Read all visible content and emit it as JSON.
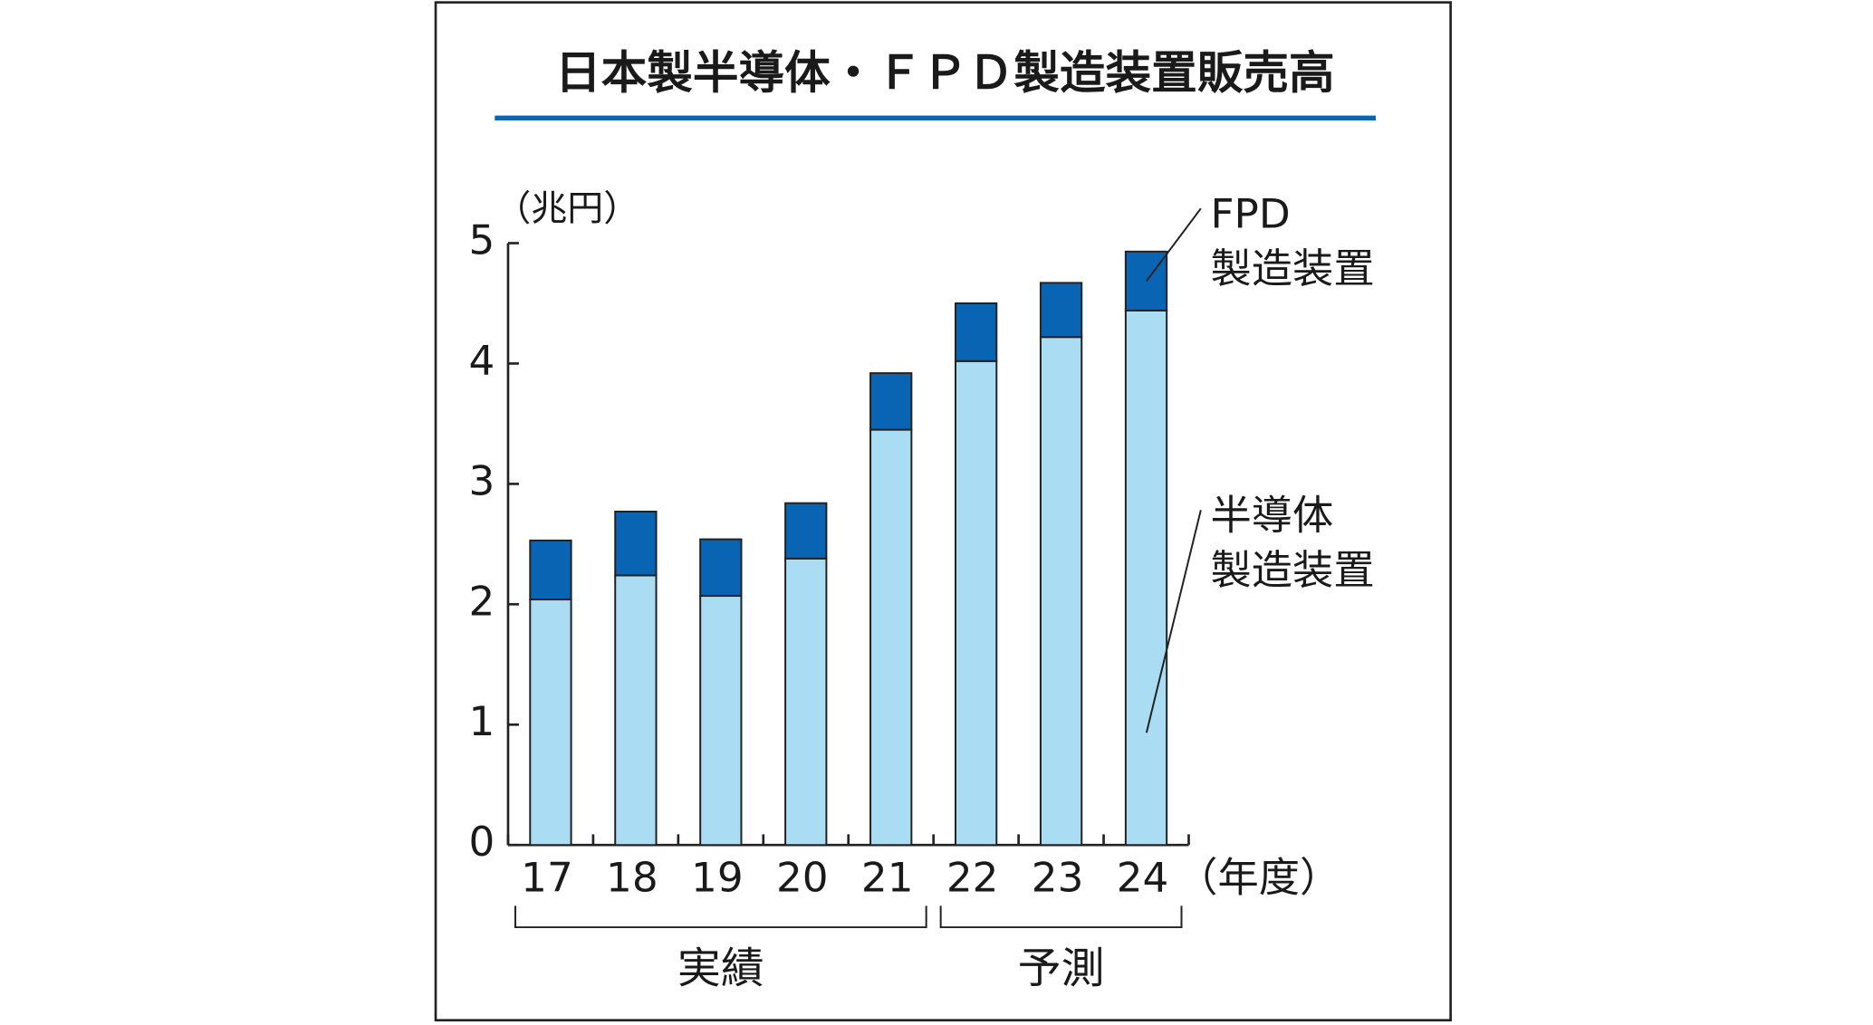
{
  "chart_data": {
    "type": "stacked-bar",
    "title": "日本製半導体・ＦＰＤ製造装置販売高",
    "y_unit": "（兆円）",
    "x_unit": "（年度）",
    "categories": [
      "17",
      "18",
      "19",
      "20",
      "21",
      "22",
      "23",
      "24"
    ],
    "series": [
      {
        "name": "半導体\n製造装置",
        "color": "#aadcf4",
        "values": [
          2.04,
          2.24,
          2.07,
          2.38,
          3.45,
          4.02,
          4.22,
          4.44
        ]
      },
      {
        "name": "FPD\n製造装置",
        "color": "#0a64b4",
        "values": [
          0.49,
          0.53,
          0.47,
          0.46,
          0.47,
          0.48,
          0.45,
          0.49
        ]
      }
    ],
    "groups": [
      "実績",
      "予測"
    ],
    "ylim": [
      0,
      5
    ],
    "yticks": [
      0,
      1,
      2,
      3,
      4,
      5
    ]
  }
}
